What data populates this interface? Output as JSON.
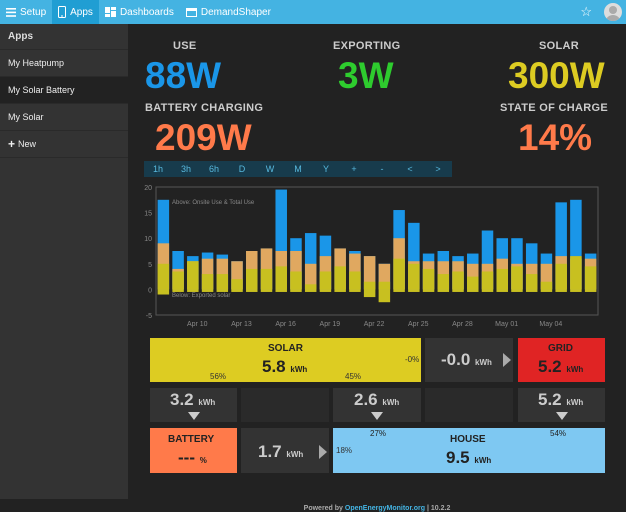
{
  "topbar": {
    "setup": "Setup",
    "apps": "Apps",
    "dashboards": "Dashboards",
    "demandshaper": "DemandShaper"
  },
  "sidebar": {
    "header": "Apps",
    "items": [
      {
        "label": "My Heatpump"
      },
      {
        "label": "My Solar Battery"
      },
      {
        "label": "My Solar"
      }
    ],
    "new_label": "New"
  },
  "stats": {
    "use": {
      "label": "USE",
      "value": "88W",
      "color": "#1a96e8"
    },
    "exporting": {
      "label": "EXPORTING",
      "value": "3W",
      "color": "#2ecc2e"
    },
    "solar": {
      "label": "SOLAR",
      "value": "300W",
      "color": "#ddcc22"
    },
    "battery": {
      "label": "BATTERY CHARGING",
      "value": "209W",
      "color": "#ff7a4a"
    },
    "soc": {
      "label": "STATE OF CHARGE",
      "value": "14%",
      "color": "#ff7a4a"
    }
  },
  "time_buttons": [
    "1h",
    "3h",
    "6h",
    "D",
    "W",
    "M",
    "Y",
    "+",
    "-",
    "<",
    ">"
  ],
  "chart_data": {
    "type": "bar",
    "ylim": [
      -5,
      20
    ],
    "yticks": [
      -5,
      0,
      5,
      10,
      15,
      20
    ],
    "annotations": [
      "Above: Onsite Use & Total Use",
      "Below: Exported solar"
    ],
    "xtick_labels": [
      "Apr 10",
      "Apr 13",
      "Apr 16",
      "Apr 19",
      "Apr 22",
      "Apr 25",
      "Apr 28",
      "May 01",
      "May 04"
    ],
    "colors": {
      "total": "#1a96e8",
      "onsite": "#e0a860",
      "solar": "#c8c020"
    },
    "series": [
      {
        "name": "total",
        "values": [
          17.5,
          7.5,
          6.5,
          7.2,
          6.8,
          5.5,
          7.5,
          8.0,
          19.5,
          10.0,
          11.0,
          10.5,
          8.0,
          7.5,
          6.5,
          5.0,
          15.5,
          13.0,
          7.0,
          7.5,
          6.5,
          7.0,
          11.5,
          10.0,
          10.0,
          9.0,
          7.0,
          17.0,
          17.5,
          7.0
        ]
      },
      {
        "name": "onsite",
        "values": [
          9.0,
          4.0,
          5.5,
          6.0,
          6.0,
          5.5,
          7.5,
          8.0,
          7.5,
          7.5,
          5.0,
          6.5,
          8.0,
          7.0,
          6.5,
          5.0,
          10.0,
          5.5,
          5.5,
          5.5,
          5.5,
          5.0,
          5.0,
          6.0,
          5.0,
          5.0,
          5.0,
          6.5,
          6.0,
          6.0
        ]
      },
      {
        "name": "solar",
        "values": [
          5.0,
          3.5,
          5.5,
          3.0,
          3.0,
          2.0,
          4.0,
          4.0,
          4.5,
          3.5,
          1.0,
          3.5,
          4.5,
          3.5,
          1.5,
          1.5,
          6.0,
          5.0,
          4.0,
          3.0,
          3.5,
          2.5,
          3.5,
          4.0,
          4.5,
          3.0,
          1.5,
          5.0,
          6.5,
          4.5
        ]
      },
      {
        "name": "exported",
        "values": [
          -1.0,
          -0.5,
          -0.5,
          -0.5,
          -0.5,
          -0.5,
          -0.5,
          -0.5,
          -0.5,
          -0.5,
          -0.5,
          -0.5,
          -0.5,
          -0.5,
          -1.5,
          -2.5,
          -0.5,
          -0.5,
          -0.5,
          -0.5,
          -0.5,
          -0.5,
          -0.5,
          -0.5,
          -0.5,
          -0.5,
          -0.5,
          -0.5,
          -0.5,
          -0.5
        ]
      }
    ]
  },
  "flow": {
    "solar": {
      "label": "SOLAR",
      "value": "5.8",
      "unit": "kWh",
      "pct_left": "56%",
      "pct_right": "45%",
      "pct_export": "-0%",
      "color": "#ddcc22"
    },
    "export": {
      "value": "-0.0",
      "unit": "kWh"
    },
    "grid": {
      "label": "GRID",
      "value": "5.2",
      "unit": "kWh",
      "color": "#e02424"
    },
    "mid1": {
      "value": "3.2",
      "unit": "kWh"
    },
    "mid2": {
      "value": "2.6",
      "unit": "kWh",
      "pct": "27%"
    },
    "mid3": {
      "value": "5.2",
      "unit": "kWh",
      "pct": "54%"
    },
    "battery": {
      "label": "BATTERY",
      "value": "---",
      "unit": "%",
      "color": "#ff7a4a"
    },
    "battery_flow": {
      "value": "1.7",
      "unit": "kWh"
    },
    "house": {
      "label": "HOUSE",
      "value": "9.5",
      "unit": "kWh",
      "pct_left": "18%",
      "color": "#7ec8f2"
    }
  },
  "footer": {
    "prefix": "Powered by ",
    "link": "OpenEnergyMonitor.org",
    "sep": " | ",
    "version": "10.2.2"
  }
}
